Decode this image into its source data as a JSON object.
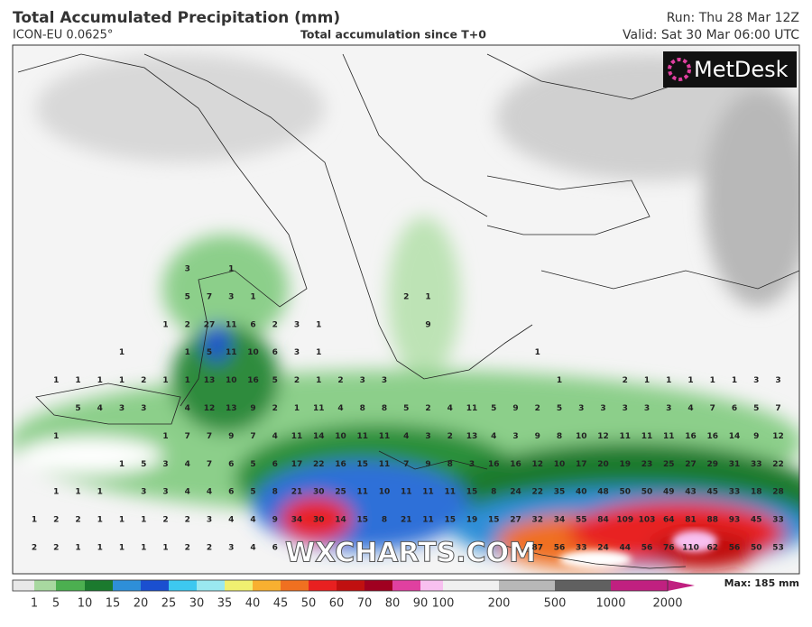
{
  "header": {
    "title": "Total Accumulated Precipitation (mm)",
    "model": "ICON-EU 0.0625°",
    "subtitle": "Total accumulation since T+0",
    "run": "Run: Thu 28 Mar 12Z",
    "valid": "Valid: Sat 30 Mar 06:00 UTC"
  },
  "logo": "MetDesk",
  "watermark": "WXCHARTS.COM",
  "map": {
    "value_rows": [
      [
        null,
        null,
        null,
        null,
        null,
        null,
        null,
        3,
        null,
        1,
        null,
        null,
        null,
        null,
        null,
        null,
        null,
        null,
        null,
        null,
        null,
        null,
        null,
        null,
        null,
        null,
        null,
        null,
        null,
        null,
        null,
        null,
        null,
        null,
        null
      ],
      [
        null,
        null,
        null,
        null,
        null,
        null,
        null,
        5,
        7,
        3,
        1,
        null,
        null,
        null,
        null,
        null,
        null,
        2,
        1,
        null,
        null,
        null,
        null,
        null,
        null,
        null,
        null,
        null,
        null,
        null,
        null,
        null,
        null,
        null,
        null
      ],
      [
        null,
        null,
        null,
        null,
        null,
        null,
        1,
        2,
        27,
        11,
        6,
        2,
        3,
        1,
        null,
        null,
        null,
        null,
        9,
        null,
        null,
        null,
        null,
        null,
        null,
        null,
        null,
        null,
        null,
        null,
        null,
        null,
        null,
        null,
        null
      ],
      [
        null,
        null,
        null,
        null,
        1,
        null,
        null,
        1,
        5,
        11,
        10,
        6,
        3,
        1,
        null,
        null,
        null,
        null,
        null,
        null,
        null,
        null,
        null,
        1,
        null,
        null,
        null,
        null,
        null,
        null,
        null,
        null,
        null,
        null,
        null
      ],
      [
        null,
        1,
        1,
        1,
        1,
        2,
        1,
        1,
        13,
        10,
        16,
        5,
        2,
        1,
        2,
        3,
        3,
        null,
        null,
        null,
        null,
        null,
        null,
        null,
        1,
        null,
        null,
        2,
        1,
        1,
        1,
        1,
        1,
        3,
        3
      ],
      [
        null,
        null,
        5,
        4,
        3,
        3,
        null,
        4,
        12,
        13,
        9,
        2,
        1,
        11,
        4,
        8,
        8,
        5,
        2,
        4,
        11,
        5,
        9,
        2,
        5,
        3,
        3,
        3,
        3,
        3,
        4,
        7,
        6,
        5,
        7
      ],
      [
        null,
        1,
        null,
        null,
        null,
        null,
        1,
        7,
        7,
        9,
        7,
        4,
        11,
        14,
        10,
        11,
        11,
        4,
        3,
        2,
        13,
        4,
        3,
        9,
        8,
        10,
        12,
        11,
        11,
        11,
        16,
        16,
        14,
        9,
        12
      ],
      [
        null,
        null,
        null,
        null,
        1,
        5,
        3,
        4,
        7,
        6,
        5,
        6,
        17,
        22,
        16,
        15,
        11,
        7,
        9,
        8,
        3,
        16,
        16,
        12,
        10,
        17,
        20,
        19,
        23,
        25,
        27,
        29,
        31,
        33,
        22
      ],
      [
        null,
        1,
        1,
        1,
        null,
        3,
        3,
        4,
        4,
        6,
        5,
        8,
        21,
        30,
        25,
        11,
        10,
        11,
        11,
        11,
        15,
        8,
        24,
        22,
        35,
        40,
        48,
        50,
        50,
        49,
        43,
        45,
        33,
        18,
        28
      ],
      [
        1,
        2,
        2,
        1,
        1,
        1,
        2,
        2,
        3,
        4,
        4,
        9,
        34,
        30,
        14,
        15,
        8,
        21,
        11,
        15,
        19,
        15,
        27,
        32,
        34,
        55,
        84,
        109,
        103,
        64,
        81,
        88,
        93,
        45,
        33
      ],
      [
        2,
        2,
        1,
        1,
        1,
        1,
        1,
        2,
        2,
        3,
        4,
        6,
        null,
        null,
        null,
        null,
        null,
        null,
        null,
        null,
        null,
        null,
        null,
        87,
        56,
        33,
        24,
        44,
        56,
        76,
        110,
        62,
        56,
        50,
        53
      ]
    ]
  },
  "colorbar": {
    "ticks": [
      1,
      5,
      10,
      15,
      20,
      25,
      30,
      35,
      40,
      45,
      50,
      60,
      70,
      80,
      90,
      100,
      200,
      500,
      1000,
      2000
    ],
    "colors": [
      "#e8e8e8",
      "#a8d8a0",
      "#4caf50",
      "#1b7a2e",
      "#2e8fd8",
      "#1a4fd0",
      "#3dc8f0",
      "#9ae8f0",
      "#f0f070",
      "#f8b030",
      "#f07020",
      "#e82020",
      "#c01010",
      "#a00020",
      "#e040a0",
      "#f8c0f0",
      "#f0f0f0",
      "#b8b8b8",
      "#606060",
      "#c02080"
    ],
    "max_label": "Max: 185 mm"
  }
}
